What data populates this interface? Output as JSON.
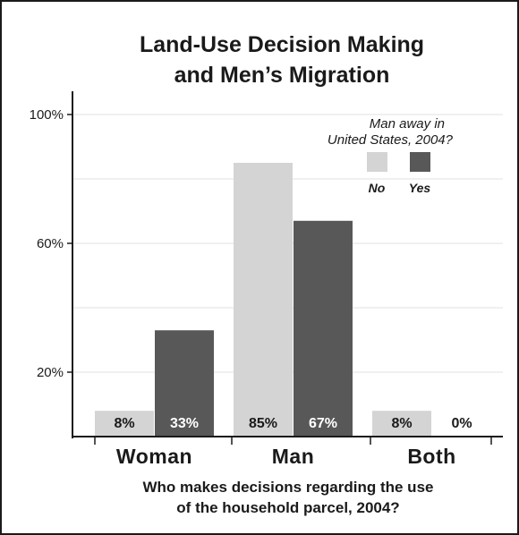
{
  "chart_data": {
    "type": "bar",
    "title_lines": [
      "Land-Use Decision Making",
      "and Men’s Migration"
    ],
    "xlabel_lines": [
      "Who makes decisions regarding the use",
      "of the household parcel, 2004?"
    ],
    "ylabel": "",
    "categories": [
      "Woman",
      "Man",
      "Both"
    ],
    "series": [
      {
        "name": "No",
        "values": [
          8,
          85,
          8
        ],
        "labels": [
          "8%",
          "85%",
          "8%"
        ]
      },
      {
        "name": "Yes",
        "values": [
          33,
          67,
          0
        ],
        "labels": [
          "33%",
          "67%",
          "0%"
        ]
      }
    ],
    "legend_title_lines": [
      "Man away in",
      "United States, 2004?"
    ],
    "legend_position": "top-right",
    "ylim": [
      0,
      100
    ],
    "yticks": [
      20,
      60,
      100
    ],
    "ytick_labels": [
      "20%",
      "60%",
      "100%"
    ],
    "grid": true,
    "colors": {
      "No": "#d4d4d4",
      "Yes": "#585858",
      "grid": "#e2e2e2",
      "axis": "#1a1a1a"
    }
  }
}
